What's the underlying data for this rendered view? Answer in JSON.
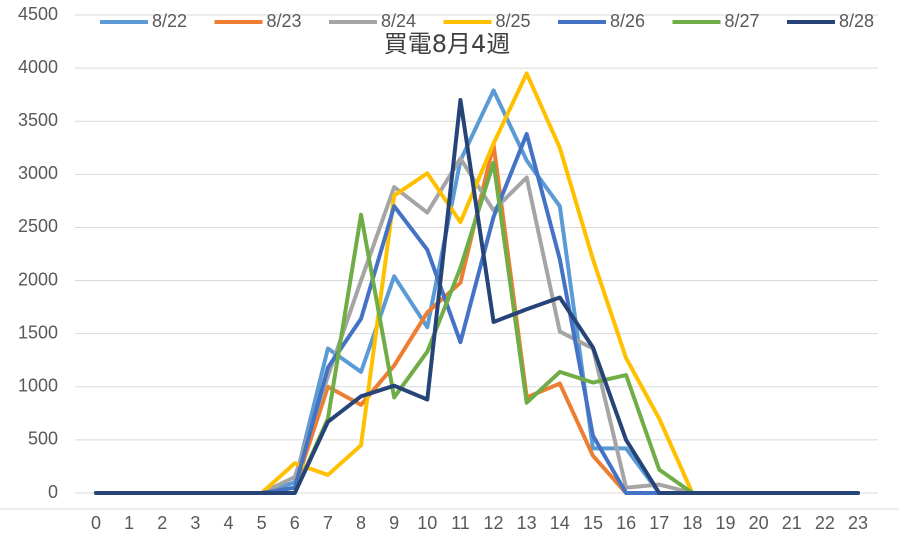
{
  "chart_data": {
    "type": "line",
    "title": "買電8月4週",
    "categories": [
      "0",
      "1",
      "2",
      "3",
      "4",
      "5",
      "6",
      "7",
      "8",
      "9",
      "10",
      "11",
      "12",
      "13",
      "14",
      "15",
      "16",
      "17",
      "18",
      "19",
      "20",
      "21",
      "22",
      "23"
    ],
    "ylim": [
      0,
      4500
    ],
    "yticks": [
      0,
      500,
      1000,
      1500,
      2000,
      2500,
      3000,
      3500,
      4000,
      4500
    ],
    "grid": true,
    "legend": "top",
    "series": [
      {
        "name": "8/22",
        "color": "#5B9BD5",
        "values": [
          0,
          0,
          0,
          0,
          0,
          0,
          100,
          1360,
          1140,
          2040,
          1560,
          3130,
          3790,
          3130,
          2700,
          420,
          420,
          0,
          0,
          0,
          0,
          0,
          0,
          0
        ]
      },
      {
        "name": "8/23",
        "color": "#ED7D31",
        "values": [
          0,
          0,
          0,
          0,
          0,
          0,
          50,
          1000,
          830,
          1200,
          1700,
          1980,
          3280,
          900,
          1030,
          350,
          0,
          0,
          0,
          0,
          0,
          0,
          0,
          0
        ]
      },
      {
        "name": "8/24",
        "color": "#A5A5A5",
        "values": [
          0,
          0,
          0,
          0,
          0,
          0,
          150,
          1100,
          2000,
          2880,
          2640,
          3150,
          2660,
          2970,
          1520,
          1360,
          50,
          80,
          0,
          0,
          0,
          0,
          0,
          0
        ]
      },
      {
        "name": "8/25",
        "color": "#FFC000",
        "values": [
          0,
          0,
          0,
          0,
          0,
          0,
          280,
          170,
          450,
          2800,
          3010,
          2550,
          3290,
          3950,
          3250,
          2200,
          1270,
          700,
          0,
          0,
          0,
          0,
          0,
          0
        ]
      },
      {
        "name": "8/26",
        "color": "#4472C4",
        "values": [
          0,
          0,
          0,
          0,
          0,
          0,
          50,
          1180,
          1640,
          2700,
          2290,
          1420,
          2600,
          3380,
          2200,
          540,
          0,
          0,
          0,
          0,
          0,
          0,
          0,
          0
        ]
      },
      {
        "name": "8/27",
        "color": "#70AD47",
        "values": [
          0,
          0,
          0,
          0,
          0,
          0,
          0,
          700,
          2620,
          900,
          1330,
          2120,
          3110,
          850,
          1140,
          1040,
          1110,
          220,
          0,
          0,
          0,
          0,
          0,
          0
        ]
      },
      {
        "name": "8/28",
        "color": "#264478",
        "values": [
          0,
          0,
          0,
          0,
          0,
          0,
          0,
          670,
          910,
          1010,
          880,
          3700,
          1610,
          1730,
          1840,
          1370,
          500,
          0,
          0,
          0,
          0,
          0,
          0,
          0
        ]
      }
    ]
  }
}
